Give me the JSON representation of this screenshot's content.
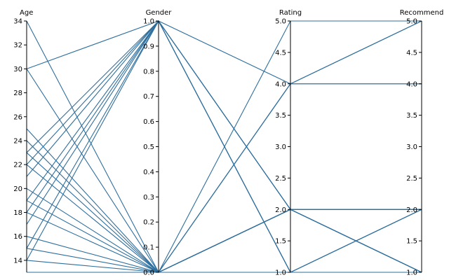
{
  "chart_data": {
    "type": "parallel-coordinates",
    "line_color": "#2e6f9e",
    "axes": [
      {
        "name": "Age",
        "range": [
          13,
          34
        ],
        "ticks": [
          14,
          16,
          18,
          20,
          22,
          24,
          26,
          28,
          30,
          32,
          34
        ],
        "tick_labels": [
          "14",
          "16",
          "18",
          "20",
          "22",
          "24",
          "26",
          "28",
          "30",
          "32",
          "34"
        ]
      },
      {
        "name": "Gender",
        "range": [
          0,
          1
        ],
        "ticks": [
          0,
          0.1,
          0.2,
          0.3,
          0.4,
          0.5,
          0.6,
          0.7,
          0.8,
          0.9,
          1.0
        ],
        "tick_labels": [
          "0.0",
          "0.1",
          "0.2",
          "0.3",
          "0.4",
          "0.5",
          "0.6",
          "0.7",
          "0.8",
          "0.9",
          "1.0"
        ]
      },
      {
        "name": "Rating",
        "range": [
          1,
          5
        ],
        "ticks": [
          1,
          1.5,
          2,
          2.5,
          3,
          3.5,
          4,
          4.5,
          5
        ],
        "tick_labels": [
          "1.0",
          "1.5",
          "2.0",
          "2.5",
          "3.0",
          "3.5",
          "4.0",
          "4.5",
          "5.0"
        ]
      },
      {
        "name": "Recommend",
        "range": [
          1,
          5
        ],
        "ticks": [
          1,
          1.5,
          2,
          2.5,
          3,
          3.5,
          4,
          4.5,
          5
        ],
        "tick_labels": [
          "1.0",
          "1.5",
          "2.0",
          "2.5",
          "3.0",
          "3.5",
          "4.0",
          "4.5",
          "5.0"
        ]
      }
    ],
    "records": [
      [
        34,
        0,
        5,
        5
      ],
      [
        30,
        1,
        4,
        5
      ],
      [
        30,
        0,
        4,
        4
      ],
      [
        25,
        0,
        2,
        2
      ],
      [
        24,
        0,
        2,
        1
      ],
      [
        23,
        1,
        1,
        1
      ],
      [
        23,
        0,
        1,
        2
      ],
      [
        22,
        1,
        2,
        1
      ],
      [
        22,
        0,
        2,
        2
      ],
      [
        21,
        1,
        2,
        1
      ],
      [
        20,
        0,
        4,
        5
      ],
      [
        19,
        1,
        1,
        2
      ],
      [
        19,
        0,
        4,
        4
      ],
      [
        18,
        1,
        2,
        2
      ],
      [
        18,
        0,
        2,
        1
      ],
      [
        17,
        1,
        1,
        1
      ],
      [
        16,
        0,
        2,
        2
      ],
      [
        15,
        1,
        2,
        1
      ],
      [
        15,
        0,
        2,
        2
      ],
      [
        14,
        1,
        1,
        2
      ],
      [
        14,
        0,
        2,
        2
      ],
      [
        13,
        0,
        2,
        1
      ]
    ]
  }
}
